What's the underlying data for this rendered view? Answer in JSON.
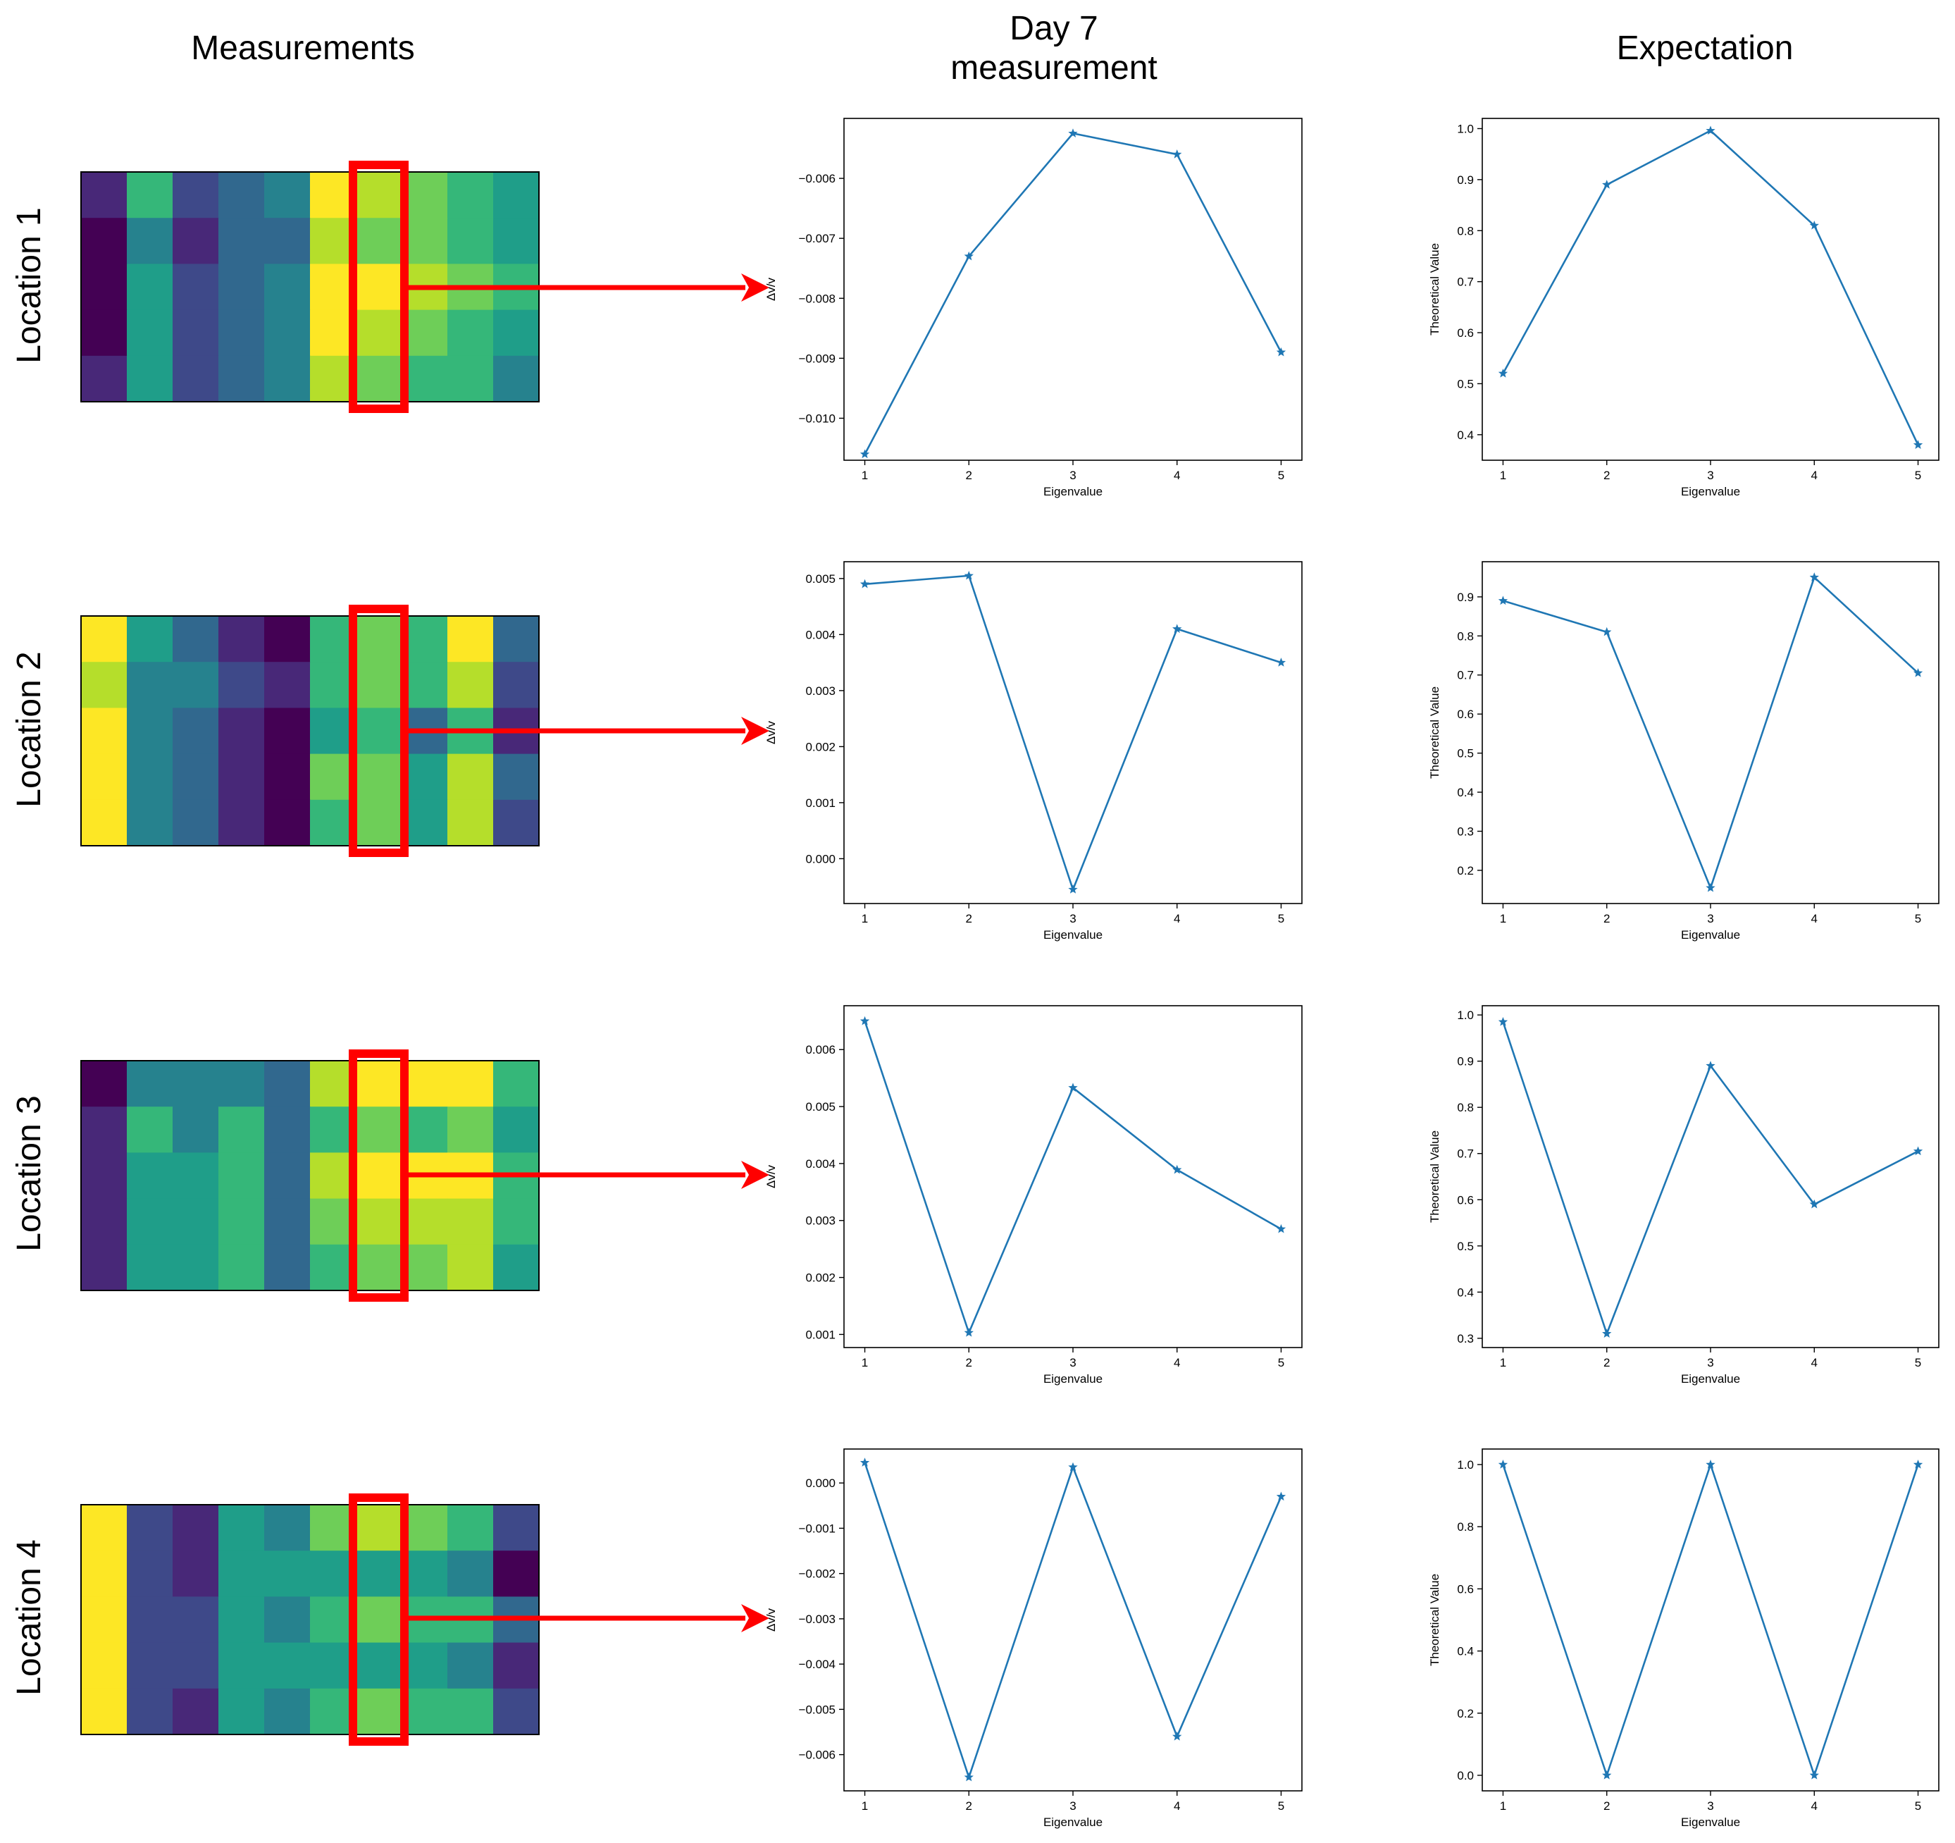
{
  "column_headers": {
    "measurements": "Measurements",
    "day7_line1": "Day 7",
    "day7_line2": "measurement",
    "expectation": "Expectation"
  },
  "row_labels": [
    "Location 1",
    "Location 2",
    "Location 3",
    "Location 4"
  ],
  "colors": {
    "line": "#1f77b4",
    "highlight": "#ff0000",
    "viridis": [
      "#440154",
      "#482878",
      "#3e4989",
      "#31688e",
      "#26828e",
      "#1f9e89",
      "#35b779",
      "#6ece58",
      "#b5de2b",
      "#fde725"
    ]
  },
  "heatmaps": [
    {
      "levels": [
        [
          1,
          6,
          2,
          3,
          4,
          9,
          8,
          7,
          6,
          5
        ],
        [
          0,
          4,
          1,
          3,
          3,
          8,
          7,
          7,
          6,
          5
        ],
        [
          0,
          5,
          2,
          3,
          4,
          10,
          9,
          8,
          7,
          6
        ],
        [
          0,
          5,
          2,
          3,
          4,
          9,
          8,
          7,
          6,
          5
        ],
        [
          1,
          5,
          2,
          3,
          4,
          8,
          7,
          6,
          6,
          4
        ]
      ]
    },
    {
      "levels": [
        [
          9,
          5,
          3,
          1,
          0,
          6,
          7,
          6,
          9,
          3
        ],
        [
          8,
          4,
          4,
          2,
          1,
          6,
          7,
          6,
          8,
          2
        ],
        [
          9,
          4,
          3,
          1,
          0,
          5,
          6,
          3,
          6,
          1
        ],
        [
          9,
          4,
          3,
          1,
          0,
          7,
          7,
          5,
          8,
          3
        ],
        [
          9,
          4,
          3,
          1,
          0,
          6,
          7,
          5,
          8,
          2
        ]
      ]
    },
    {
      "levels": [
        [
          0,
          4,
          4,
          4,
          3,
          8,
          10,
          9,
          9,
          6
        ],
        [
          1,
          6,
          4,
          6,
          3,
          6,
          7,
          6,
          7,
          5
        ],
        [
          1,
          5,
          5,
          6,
          3,
          8,
          10,
          9,
          9,
          6
        ],
        [
          1,
          5,
          5,
          6,
          3,
          7,
          8,
          8,
          8,
          6
        ],
        [
          1,
          5,
          5,
          6,
          3,
          6,
          7,
          7,
          8,
          5
        ]
      ]
    },
    {
      "levels": [
        [
          9,
          2,
          1,
          5,
          4,
          7,
          8,
          7,
          6,
          2
        ],
        [
          9,
          2,
          1,
          5,
          5,
          5,
          5,
          5,
          4,
          0
        ],
        [
          9,
          2,
          2,
          5,
          4,
          6,
          7,
          6,
          6,
          3
        ],
        [
          9,
          2,
          2,
          5,
          5,
          5,
          5,
          5,
          4,
          1
        ],
        [
          9,
          2,
          1,
          5,
          4,
          6,
          7,
          6,
          6,
          2
        ]
      ]
    }
  ],
  "chart_data": [
    {
      "type": "line",
      "location": "Location 1",
      "group": "Day 7 measurement",
      "series_name": "",
      "x": [
        1,
        2,
        3,
        4,
        5
      ],
      "y": [
        -0.0106,
        -0.0073,
        -0.00525,
        -0.0056,
        -0.0089
      ],
      "xlabel": "Eigenvalue",
      "ylabel": "Δv/v",
      "ylim": [
        -0.0107,
        -0.005
      ],
      "yticks": [
        -0.006,
        -0.007,
        -0.008,
        -0.009,
        -0.01
      ],
      "ytick_labels": [
        "−0.006",
        "−0.007",
        "−0.008",
        "−0.009",
        "−0.010"
      ],
      "xticks": [
        1,
        2,
        3,
        4,
        5
      ],
      "xtick_labels": [
        "1",
        "2",
        "3",
        "4",
        "5"
      ],
      "grid": false
    },
    {
      "type": "line",
      "location": "Location 1",
      "group": "Expectation",
      "series_name": "",
      "x": [
        1,
        2,
        3,
        4,
        5
      ],
      "y": [
        0.52,
        0.89,
        0.996,
        0.81,
        0.38
      ],
      "xlabel": "Eigenvalue",
      "ylabel": "Theoretical Value",
      "ylim": [
        0.35,
        1.02
      ],
      "yticks": [
        1.0,
        0.9,
        0.8,
        0.7,
        0.6,
        0.5,
        0.4
      ],
      "ytick_labels": [
        "1.0",
        "0.9",
        "0.8",
        "0.7",
        "0.6",
        "0.5",
        "0.4"
      ],
      "xticks": [
        1,
        2,
        3,
        4,
        5
      ],
      "xtick_labels": [
        "1",
        "2",
        "3",
        "4",
        "5"
      ],
      "grid": false
    },
    {
      "type": "line",
      "location": "Location 2",
      "group": "Day 7 measurement",
      "series_name": "",
      "x": [
        1,
        2,
        3,
        4,
        5
      ],
      "y": [
        0.0049,
        0.00505,
        -0.00055,
        0.0041,
        0.0035
      ],
      "xlabel": "Eigenvalue",
      "ylabel": "Δv/v",
      "ylim": [
        -0.0008,
        0.0053
      ],
      "yticks": [
        0.005,
        0.004,
        0.003,
        0.002,
        0.001,
        0.0
      ],
      "ytick_labels": [
        "0.005",
        "0.004",
        "0.003",
        "0.002",
        "0.001",
        "0.000"
      ],
      "xticks": [
        1,
        2,
        3,
        4,
        5
      ],
      "xtick_labels": [
        "1",
        "2",
        "3",
        "4",
        "5"
      ],
      "grid": false
    },
    {
      "type": "line",
      "location": "Location 2",
      "group": "Expectation",
      "series_name": "",
      "x": [
        1,
        2,
        3,
        4,
        5
      ],
      "y": [
        0.89,
        0.81,
        0.155,
        0.95,
        0.705
      ],
      "xlabel": "Eigenvalue",
      "ylabel": "Theoretical Value",
      "ylim": [
        0.115,
        0.99
      ],
      "yticks": [
        0.9,
        0.8,
        0.7,
        0.6,
        0.5,
        0.4,
        0.3,
        0.2
      ],
      "ytick_labels": [
        "0.9",
        "0.8",
        "0.7",
        "0.6",
        "0.5",
        "0.4",
        "0.3",
        "0.2"
      ],
      "xticks": [
        1,
        2,
        3,
        4,
        5
      ],
      "xtick_labels": [
        "1",
        "2",
        "3",
        "4",
        "5"
      ],
      "grid": false
    },
    {
      "type": "line",
      "location": "Location 3",
      "group": "Day 7 measurement",
      "series_name": "",
      "x": [
        1,
        2,
        3,
        4,
        5
      ],
      "y": [
        0.0065,
        0.00103,
        0.00533,
        0.00389,
        0.00285
      ],
      "xlabel": "Eigenvalue",
      "ylabel": "Δv/v",
      "ylim": [
        0.00077,
        0.00677
      ],
      "yticks": [
        0.006,
        0.005,
        0.004,
        0.003,
        0.002,
        0.001
      ],
      "ytick_labels": [
        "0.006",
        "0.005",
        "0.004",
        "0.003",
        "0.002",
        "0.001"
      ],
      "xticks": [
        1,
        2,
        3,
        4,
        5
      ],
      "xtick_labels": [
        "1",
        "2",
        "3",
        "4",
        "5"
      ],
      "grid": false
    },
    {
      "type": "line",
      "location": "Location 3",
      "group": "Expectation",
      "series_name": "",
      "x": [
        1,
        2,
        3,
        4,
        5
      ],
      "y": [
        0.985,
        0.31,
        0.89,
        0.59,
        0.705
      ],
      "xlabel": "Eigenvalue",
      "ylabel": "Theoretical Value",
      "ylim": [
        0.28,
        1.02
      ],
      "yticks": [
        1.0,
        0.9,
        0.8,
        0.7,
        0.6,
        0.5,
        0.4,
        0.3
      ],
      "ytick_labels": [
        "1.0",
        "0.9",
        "0.8",
        "0.7",
        "0.6",
        "0.5",
        "0.4",
        "0.3"
      ],
      "xticks": [
        1,
        2,
        3,
        4,
        5
      ],
      "xtick_labels": [
        "1",
        "2",
        "3",
        "4",
        "5"
      ],
      "grid": false
    },
    {
      "type": "line",
      "location": "Location 4",
      "group": "Day 7 measurement",
      "series_name": "",
      "x": [
        1,
        2,
        3,
        4,
        5
      ],
      "y": [
        0.00045,
        -0.0065,
        0.00035,
        -0.0056,
        -0.0003
      ],
      "xlabel": "Eigenvalue",
      "ylabel": "Δv/v",
      "ylim": [
        -0.0068,
        0.00075
      ],
      "yticks": [
        0.0,
        -0.001,
        -0.002,
        -0.003,
        -0.004,
        -0.005,
        -0.006
      ],
      "ytick_labels": [
        "0.000",
        "−0.001",
        "−0.002",
        "−0.003",
        "−0.004",
        "−0.005",
        "−0.006"
      ],
      "xticks": [
        1,
        2,
        3,
        4,
        5
      ],
      "xtick_labels": [
        "1",
        "2",
        "3",
        "4",
        "5"
      ],
      "grid": false
    },
    {
      "type": "line",
      "location": "Location 4",
      "group": "Expectation",
      "series_name": "",
      "x": [
        1,
        2,
        3,
        4,
        5
      ],
      "y": [
        1.0,
        0.0,
        1.0,
        0.0,
        1.0
      ],
      "xlabel": "Eigenvalue",
      "ylabel": "Theoretical Value",
      "ylim": [
        -0.05,
        1.05
      ],
      "yticks": [
        1.0,
        0.8,
        0.6,
        0.4,
        0.2,
        0.0
      ],
      "ytick_labels": [
        "1.0",
        "0.8",
        "0.6",
        "0.4",
        "0.2",
        "0.0"
      ],
      "xticks": [
        1,
        2,
        3,
        4,
        5
      ],
      "xtick_labels": [
        "1",
        "2",
        "3",
        "4",
        "5"
      ],
      "grid": false
    }
  ]
}
